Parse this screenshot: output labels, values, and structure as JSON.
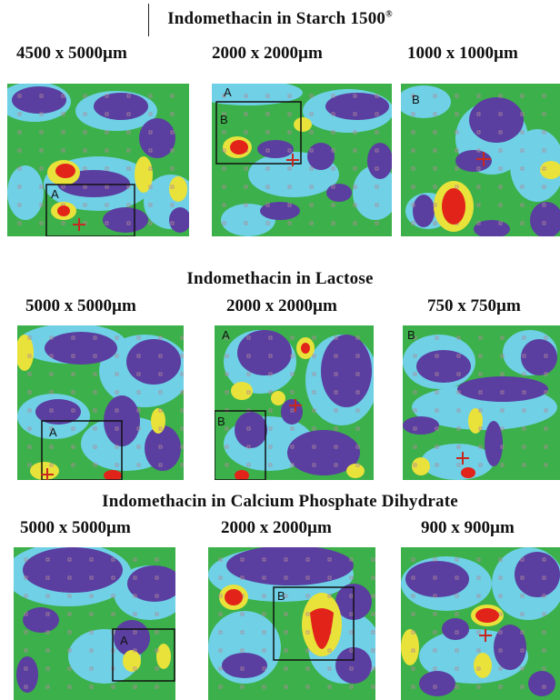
{
  "sections": [
    {
      "title": "Indomethacin in Starch 1500",
      "title_sup": "®",
      "panels": [
        {
          "dim": "4500 x 5000µm",
          "box_label": "A"
        },
        {
          "dim": "2000 x 2000µm",
          "box_label": "B",
          "corner_label": "A"
        },
        {
          "dim": "1000 x 1000µm",
          "corner_label": "B"
        }
      ]
    },
    {
      "title": "Indomethacin in Lactose",
      "title_sup": "",
      "panels": [
        {
          "dim": "5000 x 5000µm",
          "box_label": "A"
        },
        {
          "dim": "2000 x 2000µm",
          "box_label": "B",
          "corner_label": "A"
        },
        {
          "dim": "750 x 750µm",
          "corner_label": "B"
        }
      ]
    },
    {
      "title": "Indomethacin in Calcium Phosphate Dihydrate",
      "title_sup": "",
      "panels": [
        {
          "dim": "5000 x 5000µm",
          "box_label": "A"
        },
        {
          "dim": "2000 x 2000µm",
          "box_label": "B"
        },
        {
          "dim": "900 x 900µm"
        }
      ]
    }
  ],
  "colors": {
    "background_green": "#3cb04a",
    "low_purple": "#5a3ea0",
    "mid_cyan": "#6fd0e6",
    "high_yellow": "#e8e23a",
    "peak_red": "#e2231a",
    "crosshair": "#c8281e",
    "grid_marker": "#b08a9a"
  }
}
